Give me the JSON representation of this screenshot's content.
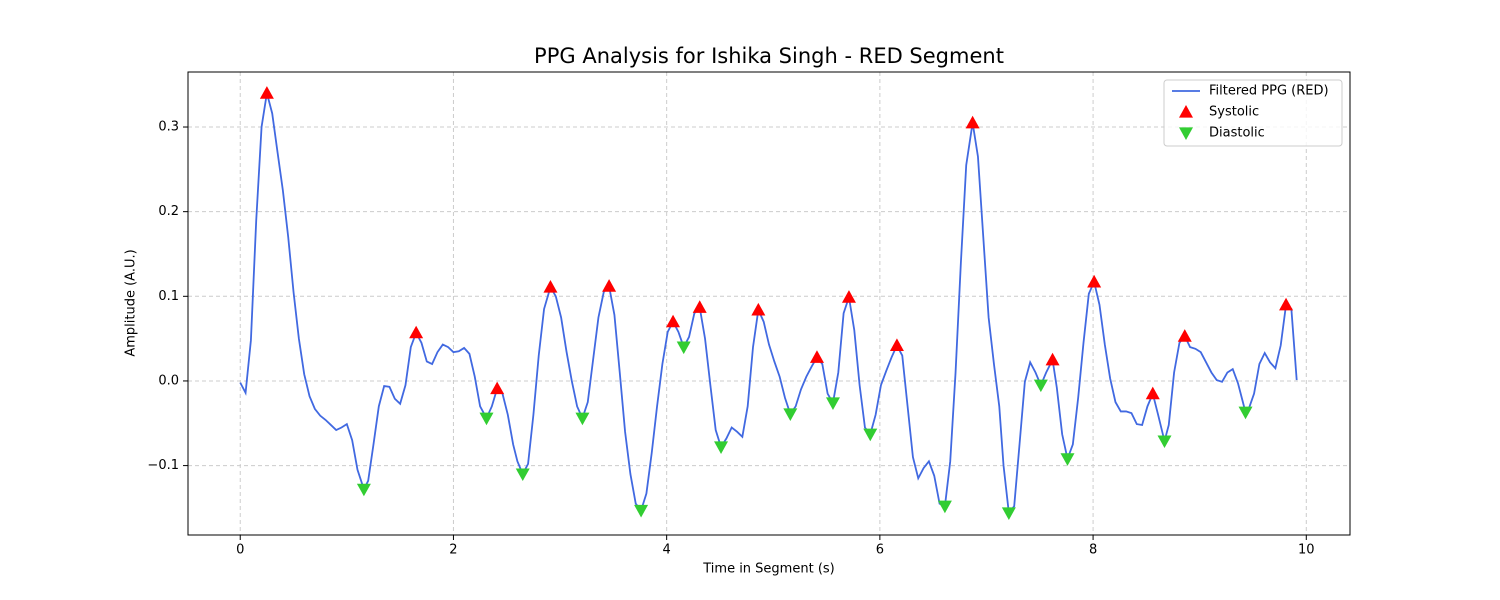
{
  "chart_data": {
    "type": "line",
    "title": "PPG Analysis for Ishika Singh - RED Segment",
    "xlabel": "Time in Segment (s)",
    "ylabel": "Amplitude (A.U.)",
    "xlim": [
      -0.49,
      10.41
    ],
    "ylim": [
      -0.182,
      0.365
    ],
    "xticks": [
      0,
      2,
      4,
      6,
      8,
      10
    ],
    "yticks": [
      {
        "value": -0.1,
        "label": "−0.1"
      },
      {
        "value": 0,
        "label": "0.0"
      },
      0.1,
      0.2,
      0.3
    ],
    "grid": true,
    "legend": "upper right",
    "series": [
      {
        "name": "Filtered PPG (RED)",
        "type": "line",
        "color": "#4169e1",
        "x": [
          0.0,
          0.05,
          0.1,
          0.15,
          0.2,
          0.25,
          0.3,
          0.35,
          0.4,
          0.45,
          0.5,
          0.55,
          0.6,
          0.65,
          0.7,
          0.75,
          0.8,
          0.85,
          0.9,
          0.95,
          1.0,
          1.05,
          1.1,
          1.16,
          1.2,
          1.25,
          1.3,
          1.35,
          1.4,
          1.45,
          1.5,
          1.55,
          1.6,
          1.65,
          1.7,
          1.75,
          1.8,
          1.85,
          1.9,
          1.95,
          2.0,
          2.05,
          2.1,
          2.15,
          2.2,
          2.25,
          2.31,
          2.36,
          2.41,
          2.46,
          2.51,
          2.56,
          2.6,
          2.65,
          2.7,
          2.75,
          2.8,
          2.85,
          2.91,
          2.96,
          3.01,
          3.06,
          3.11,
          3.16,
          3.21,
          3.26,
          3.31,
          3.36,
          3.41,
          3.46,
          3.51,
          3.56,
          3.61,
          3.66,
          3.71,
          3.76,
          3.81,
          3.86,
          3.91,
          3.96,
          4.01,
          4.06,
          4.11,
          4.16,
          4.21,
          4.26,
          4.31,
          4.36,
          4.41,
          4.46,
          4.51,
          4.56,
          4.61,
          4.66,
          4.71,
          4.76,
          4.81,
          4.86,
          4.91,
          4.96,
          5.01,
          5.06,
          5.11,
          5.16,
          5.21,
          5.26,
          5.31,
          5.36,
          5.41,
          5.46,
          5.51,
          5.56,
          5.61,
          5.66,
          5.71,
          5.76,
          5.81,
          5.86,
          5.91,
          5.96,
          6.01,
          6.06,
          6.11,
          6.16,
          6.21,
          6.26,
          6.31,
          6.36,
          6.41,
          6.46,
          6.51,
          6.56,
          6.61,
          6.66,
          6.71,
          6.76,
          6.81,
          6.87,
          6.92,
          6.97,
          7.02,
          7.07,
          7.12,
          7.16,
          7.21,
          7.26,
          7.31,
          7.36,
          7.41,
          7.46,
          7.51,
          7.56,
          7.62,
          7.66,
          7.71,
          7.76,
          7.81,
          7.86,
          7.91,
          7.96,
          8.01,
          8.06,
          8.11,
          8.16,
          8.21,
          8.26,
          8.31,
          8.36,
          8.41,
          8.46,
          8.51,
          8.56,
          8.61,
          8.67,
          8.71,
          8.76,
          8.81,
          8.86,
          8.91,
          8.96,
          9.01,
          9.06,
          9.11,
          9.16,
          9.21,
          9.26,
          9.31,
          9.36,
          9.43,
          9.46,
          9.51,
          9.56,
          9.61,
          9.66,
          9.71,
          9.76,
          9.81,
          9.86,
          9.91
        ],
        "values": [
          -0.002,
          -0.014,
          0.048,
          0.19,
          0.3,
          0.34,
          0.316,
          0.27,
          0.225,
          0.17,
          0.105,
          0.05,
          0.008,
          -0.018,
          -0.033,
          -0.041,
          -0.046,
          -0.052,
          -0.058,
          -0.055,
          -0.051,
          -0.07,
          -0.105,
          -0.128,
          -0.118,
          -0.075,
          -0.03,
          -0.006,
          -0.007,
          -0.021,
          -0.027,
          -0.005,
          0.04,
          0.057,
          0.045,
          0.023,
          0.02,
          0.034,
          0.043,
          0.04,
          0.034,
          0.035,
          0.039,
          0.032,
          0.005,
          -0.03,
          -0.044,
          -0.03,
          -0.009,
          -0.015,
          -0.04,
          -0.075,
          -0.095,
          -0.11,
          -0.098,
          -0.04,
          0.03,
          0.085,
          0.111,
          0.1,
          0.075,
          0.035,
          0.0,
          -0.03,
          -0.044,
          -0.025,
          0.025,
          0.075,
          0.105,
          0.112,
          0.078,
          0.01,
          -0.06,
          -0.11,
          -0.145,
          -0.153,
          -0.133,
          -0.085,
          -0.03,
          0.02,
          0.058,
          0.07,
          0.058,
          0.04,
          0.052,
          0.08,
          0.087,
          0.05,
          -0.005,
          -0.058,
          -0.078,
          -0.068,
          -0.055,
          -0.06,
          -0.066,
          -0.03,
          0.04,
          0.084,
          0.07,
          0.043,
          0.023,
          0.005,
          -0.02,
          -0.039,
          -0.03,
          -0.01,
          0.005,
          0.017,
          0.028,
          0.02,
          -0.015,
          -0.026,
          0.01,
          0.08,
          0.099,
          0.06,
          -0.005,
          -0.055,
          -0.063,
          -0.04,
          -0.005,
          0.012,
          0.028,
          0.042,
          0.03,
          -0.03,
          -0.09,
          -0.115,
          -0.103,
          -0.095,
          -0.112,
          -0.145,
          -0.148,
          -0.095,
          0.01,
          0.14,
          0.255,
          0.305,
          0.265,
          0.17,
          0.075,
          0.02,
          -0.03,
          -0.1,
          -0.156,
          -0.148,
          -0.075,
          -0.001,
          0.022,
          0.01,
          -0.005,
          0.01,
          0.025,
          -0.008,
          -0.063,
          -0.092,
          -0.075,
          -0.02,
          0.045,
          0.103,
          0.117,
          0.09,
          0.043,
          0.003,
          -0.025,
          -0.036,
          -0.036,
          -0.038,
          -0.051,
          -0.052,
          -0.03,
          -0.015,
          -0.04,
          -0.071,
          -0.052,
          0.01,
          0.045,
          0.053,
          0.04,
          0.038,
          0.034,
          0.022,
          0.01,
          0.001,
          -0.001,
          0.01,
          0.014,
          -0.003,
          -0.037,
          -0.033,
          -0.015,
          0.02,
          0.033,
          0.022,
          0.015,
          0.042,
          0.09,
          0.085,
          0.001
        ]
      },
      {
        "name": "Systolic",
        "type": "scatter",
        "marker": "up",
        "color": "#ff0000",
        "x": [
          0.25,
          1.65,
          2.41,
          2.91,
          3.46,
          4.06,
          4.31,
          4.86,
          5.41,
          5.71,
          6.16,
          6.87,
          7.62,
          8.01,
          8.56,
          8.86,
          9.81
        ],
        "values": [
          0.34,
          0.057,
          -0.009,
          0.111,
          0.112,
          0.07,
          0.087,
          0.084,
          0.028,
          0.099,
          0.042,
          0.305,
          0.025,
          0.117,
          -0.015,
          0.053,
          0.09
        ]
      },
      {
        "name": "Diastolic",
        "type": "scatter",
        "marker": "down",
        "color": "#32cd32",
        "x": [
          1.16,
          2.31,
          2.65,
          3.21,
          3.76,
          4.16,
          4.51,
          5.16,
          5.56,
          5.91,
          6.61,
          7.21,
          7.51,
          7.76,
          8.67,
          9.43
        ],
        "values": [
          -0.128,
          -0.044,
          -0.11,
          -0.044,
          -0.153,
          0.04,
          -0.078,
          -0.039,
          -0.026,
          -0.063,
          -0.148,
          -0.156,
          -0.005,
          -0.092,
          -0.071,
          -0.037
        ]
      }
    ]
  }
}
